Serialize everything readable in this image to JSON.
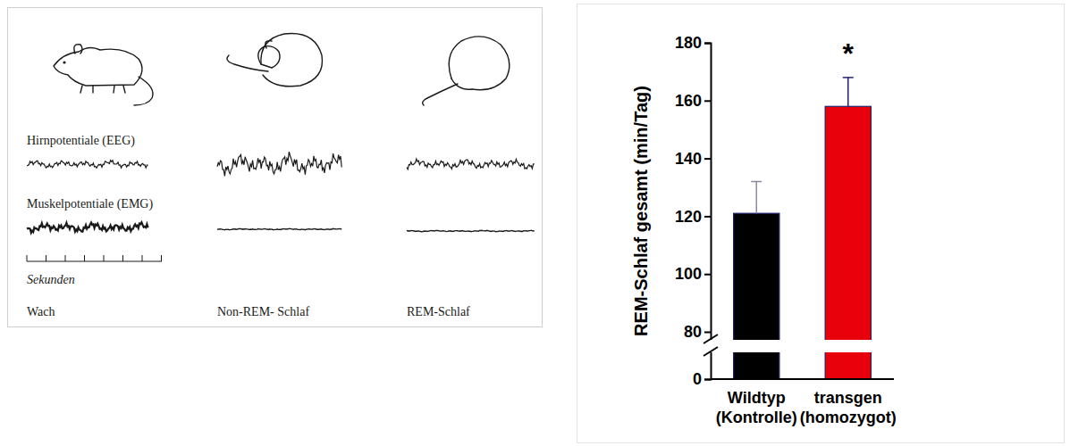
{
  "diagram": {
    "eeg_label": "Hirnpotentiale (EEG)",
    "emg_label": "Muskelpotentiale (EMG)",
    "time_axis_label": "Sekunden",
    "states": [
      "Wach",
      "Non-REM- Schlaf",
      "REM-Schlaf"
    ]
  },
  "chart_data": {
    "type": "bar",
    "y_label": "REM-Schlaf gesamt (min/Tag)",
    "categories": [
      "Wildtyp (Kontrolle)",
      "transgen (homozygot)"
    ],
    "values": [
      121,
      158
    ],
    "errors": [
      11,
      10
    ],
    "colors": [
      "#000000",
      "#e8000b"
    ],
    "ylim": [
      0,
      180
    ],
    "yticks": [
      0,
      80,
      100,
      120,
      140,
      160,
      180
    ],
    "annotations": [
      {
        "text": "*",
        "category": "transgen (homozygot)"
      }
    ]
  }
}
